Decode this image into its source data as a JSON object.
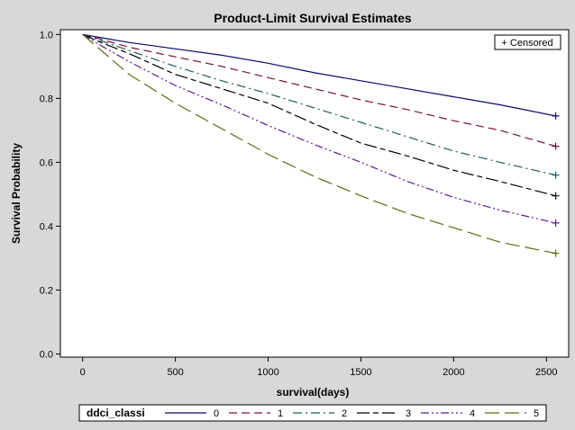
{
  "chart_data": {
    "type": "line",
    "title": "Product-Limit Survival Estimates",
    "xlabel": "survival(days)",
    "ylabel": "Survival Probability",
    "xlim": [
      -120,
      2620
    ],
    "ylim": [
      -0.01,
      1.015
    ],
    "x_ticks": [
      0,
      500,
      1000,
      1500,
      2000,
      2500
    ],
    "y_ticks": [
      0.0,
      0.2,
      0.4,
      0.6,
      0.8,
      1.0
    ],
    "y_tick_labels": [
      "0.0",
      "0.2",
      "0.4",
      "0.6",
      "0.8",
      "1.0"
    ],
    "censored_legend": "+ Censored",
    "legend": {
      "position": "bottom",
      "title": "ddci_classi",
      "entries": [
        "0",
        "1",
        "2",
        "3",
        "4",
        "5"
      ]
    },
    "series": [
      {
        "name": "0",
        "color": "#0a0a6e",
        "dash": "",
        "x": [
          0,
          100,
          250,
          500,
          750,
          1000,
          1250,
          1500,
          1750,
          2000,
          2250,
          2550
        ],
        "y": [
          1.0,
          0.99,
          0.975,
          0.955,
          0.935,
          0.91,
          0.88,
          0.855,
          0.83,
          0.805,
          0.78,
          0.745
        ],
        "censor_x": 2550,
        "censor_y": 0.745
      },
      {
        "name": "1",
        "color": "#7a1040",
        "dash": "9,5",
        "x": [
          0,
          100,
          250,
          500,
          750,
          1000,
          1250,
          1500,
          1750,
          2000,
          2250,
          2550
        ],
        "y": [
          1.0,
          0.985,
          0.96,
          0.93,
          0.9,
          0.865,
          0.83,
          0.795,
          0.765,
          0.73,
          0.7,
          0.65
        ],
        "censor_x": 2550,
        "censor_y": 0.65
      },
      {
        "name": "2",
        "color": "#1e5a5a",
        "dash": "10,4,2,4",
        "x": [
          0,
          100,
          250,
          500,
          750,
          1000,
          1250,
          1500,
          1750,
          2000,
          2250,
          2550
        ],
        "y": [
          1.0,
          0.98,
          0.95,
          0.9,
          0.855,
          0.815,
          0.77,
          0.725,
          0.68,
          0.635,
          0.6,
          0.56
        ],
        "censor_x": 2550,
        "censor_y": 0.56
      },
      {
        "name": "3",
        "color": "#000000",
        "dash": "14,4,6,4",
        "x": [
          0,
          100,
          250,
          500,
          750,
          1000,
          1250,
          1500,
          1750,
          2000,
          2250,
          2550
        ],
        "y": [
          1.0,
          0.975,
          0.94,
          0.875,
          0.83,
          0.785,
          0.72,
          0.66,
          0.62,
          0.575,
          0.54,
          0.495
        ],
        "censor_x": 2550,
        "censor_y": 0.495
      },
      {
        "name": "4",
        "color": "#5a1a9a",
        "dash": "9,3,2,3,2,3",
        "x": [
          0,
          100,
          250,
          500,
          750,
          1000,
          1250,
          1500,
          1750,
          2000,
          2250,
          2550
        ],
        "y": [
          1.0,
          0.965,
          0.915,
          0.84,
          0.78,
          0.715,
          0.655,
          0.6,
          0.54,
          0.49,
          0.45,
          0.41
        ],
        "censor_x": 2550,
        "censor_y": 0.41
      },
      {
        "name": "5",
        "color": "#5a6a10",
        "dash": "16,6",
        "x": [
          0,
          100,
          250,
          500,
          750,
          1000,
          1250,
          1500,
          1750,
          2000,
          2250,
          2550
        ],
        "y": [
          1.0,
          0.95,
          0.875,
          0.785,
          0.705,
          0.625,
          0.555,
          0.495,
          0.44,
          0.395,
          0.35,
          0.315
        ],
        "censor_x": 2550,
        "censor_y": 0.315
      }
    ]
  }
}
